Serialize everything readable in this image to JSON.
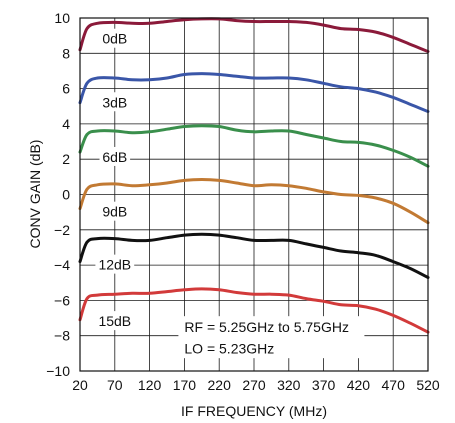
{
  "chart_data": {
    "type": "line",
    "title": "",
    "xlabel": "IF FREQUENCY (MHz)",
    "ylabel": "CONV GAIN (dB)",
    "xlim": [
      20,
      520
    ],
    "ylim": [
      -10,
      10
    ],
    "xticks": [
      20,
      70,
      120,
      170,
      220,
      270,
      320,
      370,
      420,
      470,
      520
    ],
    "yticks": [
      -10,
      -8,
      -6,
      -4,
      -2,
      0,
      2,
      4,
      6,
      8,
      10
    ],
    "grid": true,
    "x": [
      20,
      30,
      45,
      70,
      95,
      120,
      145,
      170,
      195,
      220,
      245,
      270,
      295,
      320,
      345,
      370,
      395,
      420,
      445,
      470,
      495,
      520
    ],
    "series": [
      {
        "name": "0dB",
        "color": "#8b1a3a",
        "values": [
          8.2,
          9.4,
          9.7,
          9.75,
          9.7,
          9.7,
          9.8,
          9.9,
          9.95,
          9.95,
          9.85,
          9.8,
          9.8,
          9.8,
          9.75,
          9.6,
          9.4,
          9.35,
          9.2,
          8.9,
          8.5,
          8.1
        ]
      },
      {
        "name": "3dB",
        "color": "#3a56a8",
        "values": [
          5.2,
          6.3,
          6.6,
          6.6,
          6.5,
          6.5,
          6.6,
          6.8,
          6.85,
          6.8,
          6.7,
          6.6,
          6.6,
          6.6,
          6.5,
          6.3,
          6.1,
          6.0,
          5.8,
          5.5,
          5.1,
          4.7
        ]
      },
      {
        "name": "6dB",
        "color": "#3a8f4c",
        "values": [
          2.4,
          3.4,
          3.6,
          3.6,
          3.5,
          3.55,
          3.7,
          3.85,
          3.9,
          3.85,
          3.65,
          3.55,
          3.6,
          3.6,
          3.4,
          3.2,
          3.0,
          2.95,
          2.8,
          2.5,
          2.1,
          1.6
        ]
      },
      {
        "name": "9dB",
        "color": "#c27a33",
        "values": [
          -0.8,
          0.3,
          0.55,
          0.6,
          0.5,
          0.55,
          0.65,
          0.8,
          0.85,
          0.8,
          0.65,
          0.5,
          0.55,
          0.5,
          0.35,
          0.15,
          0.0,
          -0.05,
          -0.2,
          -0.5,
          -1.0,
          -1.6
        ]
      },
      {
        "name": "12dB",
        "color": "#111111",
        "values": [
          -3.8,
          -2.7,
          -2.5,
          -2.5,
          -2.6,
          -2.6,
          -2.45,
          -2.3,
          -2.25,
          -2.3,
          -2.45,
          -2.6,
          -2.6,
          -2.6,
          -2.8,
          -3.0,
          -3.2,
          -3.3,
          -3.45,
          -3.8,
          -4.2,
          -4.7
        ]
      },
      {
        "name": "15dB",
        "color": "#d23a3a",
        "values": [
          -7.1,
          -5.9,
          -5.7,
          -5.65,
          -5.6,
          -5.6,
          -5.5,
          -5.4,
          -5.35,
          -5.4,
          -5.55,
          -5.65,
          -5.65,
          -5.7,
          -5.9,
          -6.05,
          -6.25,
          -6.3,
          -6.5,
          -6.85,
          -7.3,
          -7.8
        ]
      }
    ],
    "series_labels": [
      {
        "text": "0dB",
        "x": 70,
        "y": 8.6
      },
      {
        "text": "3dB",
        "x": 70,
        "y": 5.0
      },
      {
        "text": "6dB",
        "x": 70,
        "y": 1.9
      },
      {
        "text": "9dB",
        "x": 70,
        "y": -1.2
      },
      {
        "text": "12dB",
        "x": 70,
        "y": -4.2
      },
      {
        "text": "15dB",
        "x": 70,
        "y": -7.4
      }
    ],
    "annotations": [
      {
        "text": "RF = 5.25GHz to 5.75GHz",
        "x": 170,
        "y": -7.8
      },
      {
        "text": "LO = 5.23GHz",
        "x": 170,
        "y": -9.0
      }
    ]
  }
}
